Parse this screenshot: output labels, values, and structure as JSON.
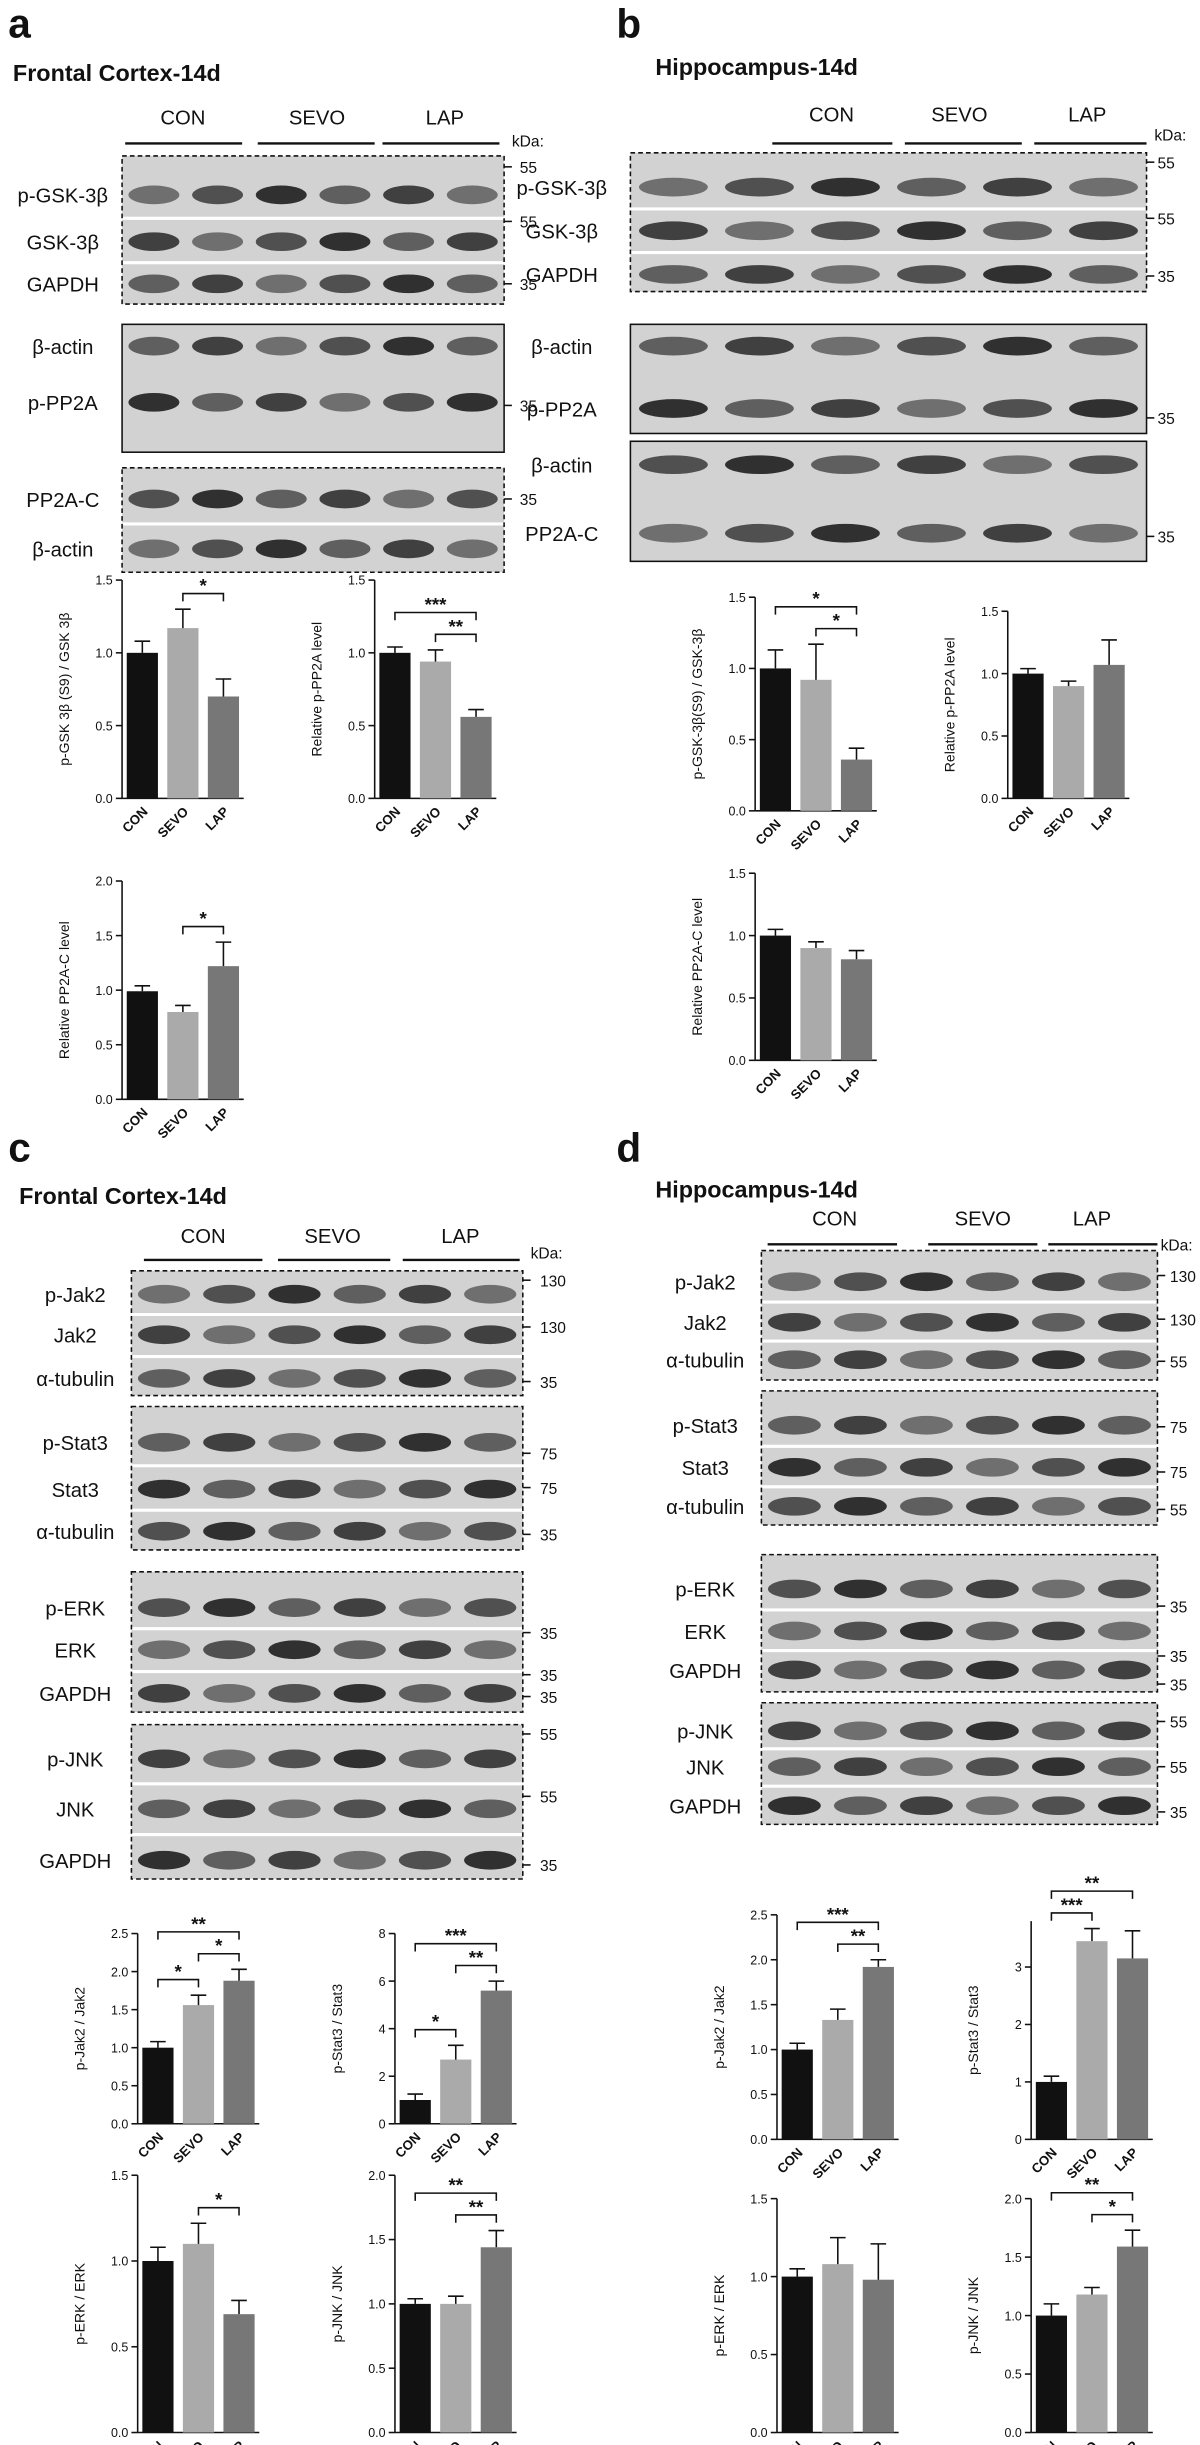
{
  "panels": [
    {
      "letter": "a",
      "title": "Frontal Cortex-14d",
      "groups": [
        "CON",
        "SEVO",
        "LAP"
      ],
      "kda": "kDa:",
      "blots": [
        {
          "border": "dashed",
          "rows": [
            {
              "label": "p-GSK-3β",
              "marker": "55"
            },
            {
              "label": "GSK-3β",
              "marker": "55"
            },
            {
              "label": "GAPDH",
              "marker": "35"
            }
          ]
        },
        {
          "border": "solid",
          "rows": [
            {
              "label": "β-actin"
            },
            {
              "label": "p-PP2A",
              "marker": "35"
            }
          ]
        },
        {
          "border": "dashed",
          "rows": [
            {
              "label": "PP2A-C",
              "marker": "35"
            },
            {
              "label": "β-actin"
            }
          ]
        }
      ]
    },
    {
      "letter": "b",
      "title": "Hippocampus-14d",
      "groups": [
        "CON",
        "SEVO",
        "LAP"
      ],
      "kda": "kDa:",
      "blots": [
        {
          "border": "dashed",
          "rows": [
            {
              "label": "p-GSK-3β",
              "marker": "55"
            },
            {
              "label": "GSK-3β",
              "marker": "55"
            },
            {
              "label": "GAPDH",
              "marker": "35"
            }
          ]
        },
        {
          "border": "solid",
          "rows": [
            {
              "label": "β-actin"
            },
            {
              "label": "p-PP2A",
              "marker": "35"
            }
          ]
        },
        {
          "border": "solid",
          "rows": [
            {
              "label": "β-actin"
            },
            {
              "label": "PP2A-C",
              "marker": "35"
            }
          ]
        }
      ]
    },
    {
      "letter": "c",
      "title": "Frontal Cortex-14d",
      "groups": [
        "CON",
        "SEVO",
        "LAP"
      ],
      "kda": "kDa:",
      "blots": [
        {
          "border": "dashed",
          "rows": [
            {
              "label": "p-Jak2",
              "marker": "130"
            },
            {
              "label": "Jak2",
              "marker": "130"
            },
            {
              "label": "α-tubulin",
              "marker": "35"
            }
          ]
        },
        {
          "border": "dashed",
          "rows": [
            {
              "label": "p-Stat3",
              "marker": "75"
            },
            {
              "label": "Stat3",
              "marker": "75"
            },
            {
              "label": "α-tubulin",
              "marker": "35"
            }
          ]
        },
        {
          "border": "dashed",
          "rows": [
            {
              "label": "p-ERK",
              "marker": "35"
            },
            {
              "label": "ERK",
              "marker": "35"
            },
            {
              "label": "GAPDH",
              "marker": "35"
            }
          ]
        },
        {
          "border": "dashed",
          "rows": [
            {
              "label": "p-JNK",
              "marker": "55"
            },
            {
              "label": "JNK",
              "marker": "55"
            },
            {
              "label": "GAPDH",
              "marker": "35"
            }
          ]
        }
      ]
    },
    {
      "letter": "d",
      "title": "Hippocampus-14d",
      "groups": [
        "CON",
        "SEVO",
        "LAP"
      ],
      "kda": "kDa:",
      "blots": [
        {
          "border": "dashed",
          "rows": [
            {
              "label": "p-Jak2",
              "marker": "130"
            },
            {
              "label": "Jak2",
              "marker": "130"
            },
            {
              "label": "α-tubulin",
              "marker": "55"
            }
          ]
        },
        {
          "border": "dashed",
          "rows": [
            {
              "label": "p-Stat3",
              "marker": "75"
            },
            {
              "label": "Stat3",
              "marker": "75"
            },
            {
              "label": "α-tubulin",
              "marker": "55"
            }
          ]
        },
        {
          "border": "dashed",
          "rows": [
            {
              "label": "p-ERK",
              "marker": "35"
            },
            {
              "label": "ERK",
              "marker": "35"
            },
            {
              "label": "GAPDH",
              "marker": "35"
            }
          ]
        },
        {
          "border": "dashed",
          "rows": [
            {
              "label": "p-JNK",
              "marker": "55"
            },
            {
              "label": "JNK",
              "marker": "55"
            },
            {
              "label": "GAPDH",
              "marker": "35"
            }
          ]
        }
      ]
    }
  ],
  "chart_data": [
    {
      "type": "bar",
      "ylabel": "p-GSK 3β (S9) / GSK 3β",
      "categories": [
        "CON",
        "SEVO",
        "LAP"
      ],
      "values": [
        1.0,
        1.17,
        0.7
      ],
      "errors": [
        0.08,
        0.13,
        0.12
      ],
      "colors": [
        "#111111",
        "#aaaaaa",
        "#777777"
      ],
      "ylim": [
        0,
        1.5
      ],
      "yticks": [
        {
          "value": 0,
          "label": "0.0"
        },
        {
          "value": 0.5,
          "label": "0.5"
        },
        {
          "value": 1,
          "label": "1.0"
        },
        {
          "value": 1.5,
          "label": "1.5"
        }
      ],
      "significance": [
        {
          "label": "*",
          "pair": [
            "SEVO",
            "LAP"
          ]
        }
      ]
    },
    {
      "type": "bar",
      "ylabel": "Relative p-PP2A level",
      "categories": [
        "CON",
        "SEVO",
        "LAP"
      ],
      "values": [
        1.0,
        0.94,
        0.56
      ],
      "errors": [
        0.04,
        0.08,
        0.05
      ],
      "colors": [
        "#111111",
        "#aaaaaa",
        "#777777"
      ],
      "ylim": [
        0,
        1.5
      ],
      "yticks": [
        {
          "value": 0,
          "label": "0.0"
        },
        {
          "value": 0.5,
          "label": "0.5"
        },
        {
          "value": 1,
          "label": "1.0"
        },
        {
          "value": 1.5,
          "label": "1.5"
        }
      ],
      "significance": [
        {
          "label": "**",
          "pair": [
            "SEVO",
            "LAP"
          ]
        },
        {
          "label": "***",
          "pair": [
            "CON",
            "LAP"
          ]
        }
      ]
    },
    {
      "type": "bar",
      "ylabel": "Relative PP2A-C level",
      "categories": [
        "CON",
        "SEVO",
        "LAP"
      ],
      "values": [
        0.99,
        0.8,
        1.22
      ],
      "errors": [
        0.05,
        0.06,
        0.22
      ],
      "colors": [
        "#111111",
        "#aaaaaa",
        "#777777"
      ],
      "ylim": [
        0,
        2
      ],
      "yticks": [
        {
          "value": 0,
          "label": "0.0"
        },
        {
          "value": 0.5,
          "label": "0.5"
        },
        {
          "value": 1,
          "label": "1.0"
        },
        {
          "value": 1.5,
          "label": "1.5"
        },
        {
          "value": 2,
          "label": "2.0"
        }
      ],
      "significance": [
        {
          "label": "*",
          "pair": [
            "SEVO",
            "LAP"
          ]
        }
      ]
    },
    {
      "type": "bar",
      "ylabel": "p-GSK-3β(S9) / GSK-3β",
      "categories": [
        "CON",
        "SEVO",
        "LAP"
      ],
      "values": [
        1.0,
        0.92,
        0.36
      ],
      "errors": [
        0.13,
        0.25,
        0.08
      ],
      "colors": [
        "#111111",
        "#aaaaaa",
        "#777777"
      ],
      "ylim": [
        0,
        1.5
      ],
      "yticks": [
        {
          "value": 0,
          "label": "0.0"
        },
        {
          "value": 0.5,
          "label": "0.5"
        },
        {
          "value": 1,
          "label": "1.0"
        },
        {
          "value": 1.5,
          "label": "1.5"
        }
      ],
      "significance": [
        {
          "label": "*",
          "pair": [
            "SEVO",
            "LAP"
          ]
        },
        {
          "label": "*",
          "pair": [
            "CON",
            "LAP"
          ]
        }
      ]
    },
    {
      "type": "bar",
      "ylabel": "Relative p-PP2A level",
      "categories": [
        "CON",
        "SEVO",
        "LAP"
      ],
      "values": [
        1.0,
        0.9,
        1.07
      ],
      "errors": [
        0.04,
        0.04,
        0.2
      ],
      "colors": [
        "#111111",
        "#aaaaaa",
        "#777777"
      ],
      "ylim": [
        0,
        1.5
      ],
      "yticks": [
        {
          "value": 0,
          "label": "0.0"
        },
        {
          "value": 0.5,
          "label": "0.5"
        },
        {
          "value": 1,
          "label": "1.0"
        },
        {
          "value": 1.5,
          "label": "1.5"
        }
      ],
      "significance": []
    },
    {
      "type": "bar",
      "ylabel": "Relative PP2A-C level",
      "categories": [
        "CON",
        "SEVO",
        "LAP"
      ],
      "values": [
        1.0,
        0.9,
        0.81
      ],
      "errors": [
        0.05,
        0.05,
        0.07
      ],
      "colors": [
        "#111111",
        "#aaaaaa",
        "#777777"
      ],
      "ylim": [
        0,
        1.5
      ],
      "yticks": [
        {
          "value": 0,
          "label": "0.0"
        },
        {
          "value": 0.5,
          "label": "0.5"
        },
        {
          "value": 1,
          "label": "1.0"
        },
        {
          "value": 1.5,
          "label": "1.5"
        }
      ],
      "significance": []
    },
    {
      "type": "bar",
      "ylabel": "p-Jak2 / Jak2",
      "categories": [
        "CON",
        "SEVO",
        "LAP"
      ],
      "values": [
        1.0,
        1.56,
        1.88
      ],
      "errors": [
        0.08,
        0.13,
        0.15
      ],
      "colors": [
        "#111111",
        "#aaaaaa",
        "#777777"
      ],
      "ylim": [
        0,
        2.5
      ],
      "yticks": [
        {
          "value": 0,
          "label": "0.0"
        },
        {
          "value": 0.5,
          "label": "0.5"
        },
        {
          "value": 1,
          "label": "1.0"
        },
        {
          "value": 1.5,
          "label": "1.5"
        },
        {
          "value": 2,
          "label": "2.0"
        },
        {
          "value": 2.5,
          "label": "2.5"
        }
      ],
      "significance": [
        {
          "label": "*",
          "pair": [
            "CON",
            "SEVO"
          ]
        },
        {
          "label": "*",
          "pair": [
            "SEVO",
            "LAP"
          ]
        },
        {
          "label": "**",
          "pair": [
            "CON",
            "LAP"
          ]
        }
      ]
    },
    {
      "type": "bar",
      "ylabel": "p-Stat3 / Stat3",
      "categories": [
        "CON",
        "SEVO",
        "LAP"
      ],
      "values": [
        1.0,
        2.7,
        5.6
      ],
      "errors": [
        0.25,
        0.6,
        0.4
      ],
      "colors": [
        "#111111",
        "#aaaaaa",
        "#777777"
      ],
      "ylim": [
        0,
        8
      ],
      "yticks": [
        0,
        2,
        4,
        6,
        8
      ],
      "significance": [
        {
          "label": "*",
          "pair": [
            "CON",
            "SEVO"
          ]
        },
        {
          "label": "**",
          "pair": [
            "SEVO",
            "LAP"
          ]
        },
        {
          "label": "***",
          "pair": [
            "CON",
            "LAP"
          ]
        }
      ]
    },
    {
      "type": "bar",
      "ylabel": "p-ERK / ERK",
      "categories": [
        "CON",
        "SEVO",
        "LAP"
      ],
      "values": [
        1.0,
        1.1,
        0.69
      ],
      "errors": [
        0.08,
        0.12,
        0.08
      ],
      "colors": [
        "#111111",
        "#aaaaaa",
        "#777777"
      ],
      "ylim": [
        0,
        1.5
      ],
      "yticks": [
        {
          "value": 0,
          "label": "0.0"
        },
        {
          "value": 0.5,
          "label": "0.5"
        },
        {
          "value": 1,
          "label": "1.0"
        },
        {
          "value": 1.5,
          "label": "1.5"
        }
      ],
      "significance": [
        {
          "label": "*",
          "pair": [
            "SEVO",
            "LAP"
          ]
        }
      ]
    },
    {
      "type": "bar",
      "ylabel": "p-JNK / JNK",
      "categories": [
        "CON",
        "SEVO",
        "LAP"
      ],
      "values": [
        1.0,
        1.0,
        1.44
      ],
      "errors": [
        0.04,
        0.06,
        0.13
      ],
      "colors": [
        "#111111",
        "#aaaaaa",
        "#777777"
      ],
      "ylim": [
        0,
        2
      ],
      "yticks": [
        {
          "value": 0,
          "label": "0.0"
        },
        {
          "value": 0.5,
          "label": "0.5"
        },
        {
          "value": 1,
          "label": "1.0"
        },
        {
          "value": 1.5,
          "label": "1.5"
        },
        {
          "value": 2,
          "label": "2.0"
        }
      ],
      "significance": [
        {
          "label": "**",
          "pair": [
            "SEVO",
            "LAP"
          ]
        },
        {
          "label": "**",
          "pair": [
            "CON",
            "LAP"
          ]
        }
      ]
    },
    {
      "type": "bar",
      "ylabel": "p-Jak2 / Jak2",
      "categories": [
        "CON",
        "SEVO",
        "LAP"
      ],
      "values": [
        1.0,
        1.33,
        1.92
      ],
      "errors": [
        0.07,
        0.12,
        0.08
      ],
      "colors": [
        "#111111",
        "#aaaaaa",
        "#777777"
      ],
      "ylim": [
        0,
        2.5
      ],
      "yticks": [
        {
          "value": 0,
          "label": "0.0"
        },
        {
          "value": 0.5,
          "label": "0.5"
        },
        {
          "value": 1,
          "label": "1.0"
        },
        {
          "value": 1.5,
          "label": "1.5"
        },
        {
          "value": 2,
          "label": "2.0"
        },
        {
          "value": 2.5,
          "label": "2.5"
        }
      ],
      "significance": [
        {
          "label": "**",
          "pair": [
            "SEVO",
            "LAP"
          ]
        },
        {
          "label": "***",
          "pair": [
            "CON",
            "LAP"
          ]
        }
      ]
    },
    {
      "type": "bar",
      "ylabel": "p-Stat3 / Stat3",
      "categories": [
        "CON",
        "SEVO",
        "LAP"
      ],
      "values": [
        1.0,
        3.45,
        3.15
      ],
      "errors": [
        0.1,
        0.22,
        0.48
      ],
      "colors": [
        "#111111",
        "#aaaaaa",
        "#777777"
      ],
      "ylim": [
        0,
        3.8
      ],
      "yticks": [
        0,
        1,
        2,
        3
      ],
      "significance": [
        {
          "label": "***",
          "pair": [
            "CON",
            "SEVO"
          ]
        },
        {
          "label": "**",
          "pair": [
            "CON",
            "LAP"
          ]
        }
      ]
    },
    {
      "type": "bar",
      "ylabel": "p-ERK / ERK",
      "categories": [
        "CON",
        "SEVO",
        "LAP"
      ],
      "values": [
        1.0,
        1.08,
        0.98
      ],
      "errors": [
        0.05,
        0.17,
        0.23
      ],
      "colors": [
        "#111111",
        "#aaaaaa",
        "#777777"
      ],
      "ylim": [
        0,
        1.5
      ],
      "yticks": [
        {
          "value": 0,
          "label": "0.0"
        },
        {
          "value": 0.5,
          "label": "0.5"
        },
        {
          "value": 1,
          "label": "1.0"
        },
        {
          "value": 1.5,
          "label": "1.5"
        }
      ],
      "significance": []
    },
    {
      "type": "bar",
      "ylabel": "p-JNK / JNK",
      "categories": [
        "CON",
        "SEVO",
        "LAP"
      ],
      "values": [
        1.0,
        1.18,
        1.59
      ],
      "errors": [
        0.1,
        0.06,
        0.14
      ],
      "colors": [
        "#111111",
        "#aaaaaa",
        "#777777"
      ],
      "ylim": [
        0,
        2
      ],
      "yticks": [
        {
          "value": 0,
          "label": "0.0"
        },
        {
          "value": 0.5,
          "label": "0.5"
        },
        {
          "value": 1,
          "label": "1.0"
        },
        {
          "value": 1.5,
          "label": "1.5"
        },
        {
          "value": 2,
          "label": "2.0"
        }
      ],
      "significance": [
        {
          "label": "*",
          "pair": [
            "SEVO",
            "LAP"
          ]
        },
        {
          "label": "**",
          "pair": [
            "CON",
            "LAP"
          ]
        }
      ]
    }
  ]
}
